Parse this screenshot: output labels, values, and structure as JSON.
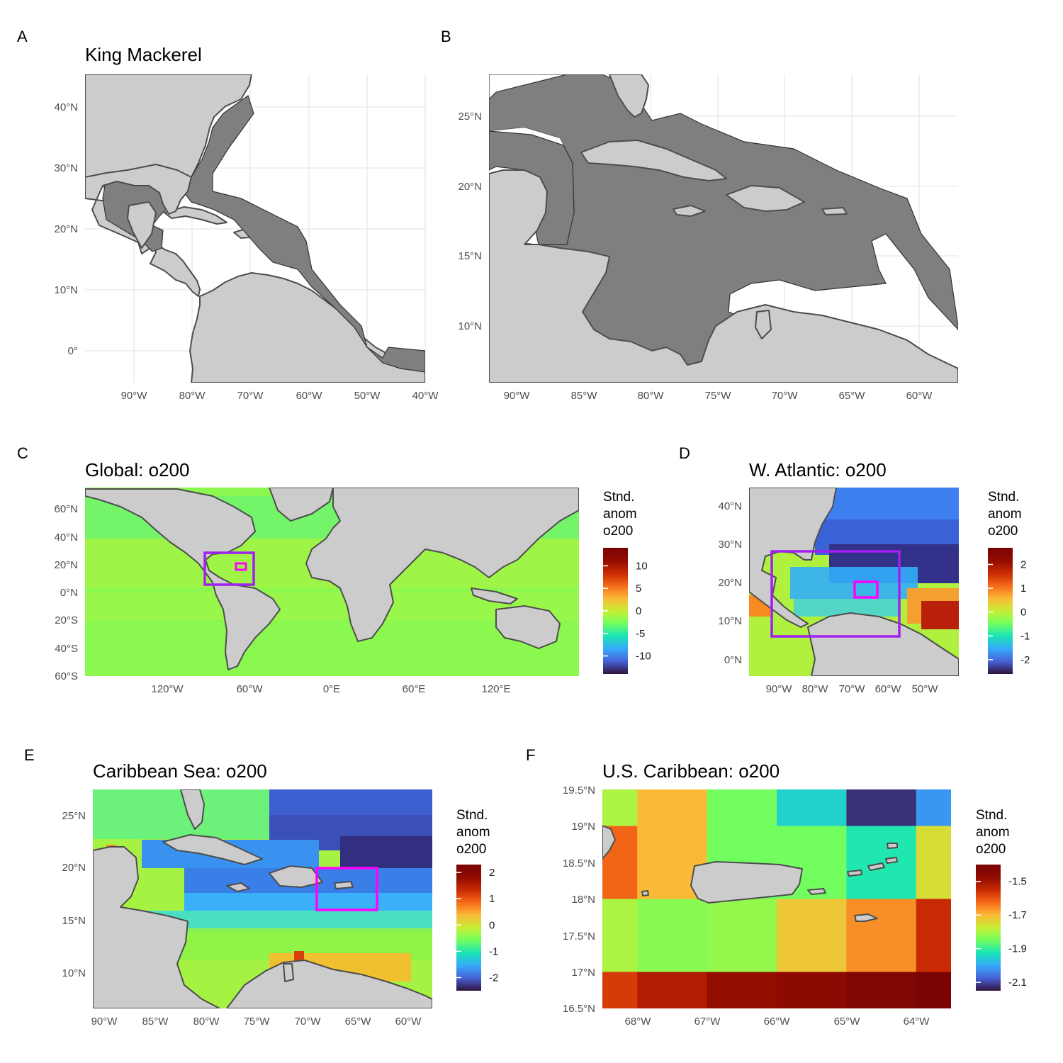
{
  "figure": {
    "panels": [
      {
        "id": "A",
        "letter": "A",
        "title": "King Mackerel",
        "x_ticks": [
          "90°W",
          "80°W",
          "70°W",
          "60°W",
          "50°W",
          "40°W"
        ],
        "y_ticks": [
          "0°",
          "10°N",
          "20°N",
          "30°N",
          "40°N"
        ]
      },
      {
        "id": "B",
        "letter": "B",
        "title": "",
        "x_ticks": [
          "90°W",
          "85°W",
          "80°W",
          "75°W",
          "70°W",
          "65°W",
          "60°W"
        ],
        "y_ticks": [
          "10°N",
          "15°N",
          "20°N",
          "25°N"
        ]
      },
      {
        "id": "C",
        "letter": "C",
        "title": "Global: o200",
        "x_ticks": [
          "120°W",
          "60°W",
          "0°E",
          "60°E",
          "120°E"
        ],
        "y_ticks": [
          "60°S",
          "40°S",
          "20°S",
          "0°N",
          "20°N",
          "40°N",
          "60°N"
        ],
        "legend": {
          "title_lines": [
            "Stnd.",
            "anom",
            "o200"
          ],
          "ticks": [
            "10",
            "5",
            "0",
            "-5",
            "-10"
          ],
          "range": [
            -14,
            14
          ]
        }
      },
      {
        "id": "D",
        "letter": "D",
        "title": "W. Atlantic: o200",
        "x_ticks": [
          "90°W",
          "80°W",
          "70°W",
          "60°W",
          "50°W"
        ],
        "y_ticks": [
          "0°N",
          "10°N",
          "20°N",
          "30°N",
          "40°N"
        ],
        "legend": {
          "title_lines": [
            "Stnd.",
            "anom",
            "o200"
          ],
          "ticks": [
            "2",
            "1",
            "0",
            "-1",
            "-2"
          ],
          "range": [
            -2.6,
            2.7
          ]
        }
      },
      {
        "id": "E",
        "letter": "E",
        "title": "Caribbean Sea: o200",
        "x_ticks": [
          "90°W",
          "85°W",
          "80°W",
          "75°W",
          "70°W",
          "65°W",
          "60°W"
        ],
        "y_ticks": [
          "10°N",
          "15°N",
          "20°N",
          "25°N"
        ],
        "legend": {
          "title_lines": [
            "Stnd.",
            "anom",
            "o200"
          ],
          "ticks": [
            "2",
            "1",
            "0",
            "-1",
            "-2"
          ],
          "range": [
            -2.5,
            2.3
          ]
        }
      },
      {
        "id": "F",
        "letter": "F",
        "title": "U.S. Caribbean: o200",
        "x_ticks": [
          "68°W",
          "67°W",
          "66°W",
          "65°W",
          "64°W"
        ],
        "y_ticks": [
          "16.5°N",
          "17°N",
          "17.5°N",
          "18°N",
          "18.5°N",
          "19°N",
          "19.5°N"
        ],
        "legend": {
          "title_lines": [
            "Stnd.",
            "anom",
            "o200"
          ],
          "ticks": [
            "-1.5",
            "-1.7",
            "-1.9",
            "-2.1"
          ],
          "range": [
            -2.15,
            -1.4
          ]
        }
      }
    ]
  },
  "colors": {
    "land": "#cccccc",
    "coast": "#4d4d4d",
    "species_range": "#7f7f7f",
    "box_outer": "#a020f0",
    "box_inner": "#ff00ff",
    "grid": "#ebebeb"
  },
  "chart_data": {
    "type": "heatmap",
    "variable": "o200",
    "grid_F": {
      "lon_range": [
        -68.5,
        -63.5
      ],
      "lat_range": [
        16.5,
        19.5
      ],
      "lon_step": 1.0,
      "lat_step": 0.5,
      "rows_north_to_south": [
        [
          -1.8,
          -1.7,
          -1.85,
          -1.95,
          -2.12,
          -2.02
        ],
        [
          -1.62,
          -1.7,
          -1.85,
          -1.85,
          -1.92,
          -1.75
        ],
        [
          -1.62,
          -1.7,
          -1.85,
          -1.85,
          -1.92,
          -1.75
        ],
        [
          -1.8,
          -1.83,
          -1.82,
          -1.72,
          -1.66,
          -1.55
        ],
        [
          -1.8,
          -1.83,
          -1.82,
          -1.72,
          -1.66,
          -1.55
        ],
        [
          -1.57,
          -1.52,
          -1.48,
          -1.46,
          -1.42,
          -1.38
        ]
      ]
    }
  }
}
